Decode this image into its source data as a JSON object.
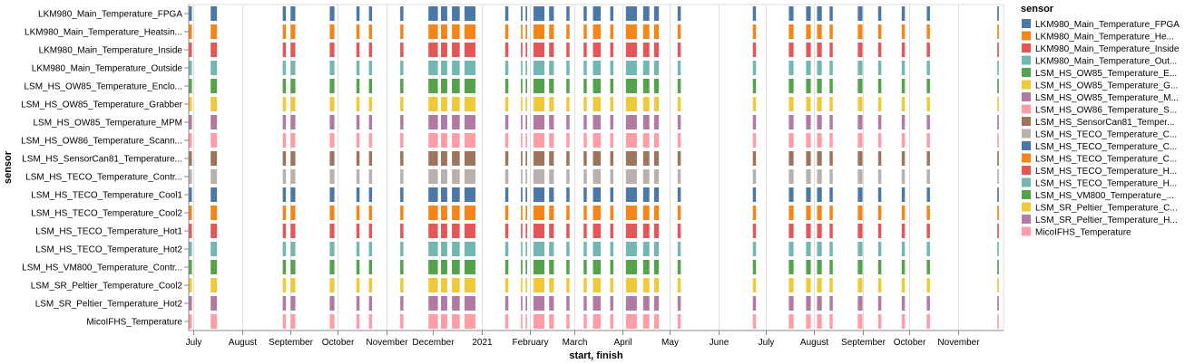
{
  "chart_data": {
    "type": "gantt",
    "xlabel": "start, finish",
    "ylabel": "sensor",
    "x_domain": [
      "2020-06-28",
      "2021-11-30"
    ],
    "x_ticks": [
      {
        "date": "2020-07-01",
        "label": "July"
      },
      {
        "date": "2020-08-01",
        "label": "August"
      },
      {
        "date": "2020-09-01",
        "label": "September"
      },
      {
        "date": "2020-10-01",
        "label": "October"
      },
      {
        "date": "2020-11-01",
        "label": "November"
      },
      {
        "date": "2020-12-01",
        "label": "December"
      },
      {
        "date": "2021-01-01",
        "label": "2021"
      },
      {
        "date": "2021-02-01",
        "label": "February"
      },
      {
        "date": "2021-03-01",
        "label": "March"
      },
      {
        "date": "2021-04-01",
        "label": "April"
      },
      {
        "date": "2021-05-01",
        "label": "May"
      },
      {
        "date": "2021-06-01",
        "label": "June"
      },
      {
        "date": "2021-07-01",
        "label": "July"
      },
      {
        "date": "2021-08-01",
        "label": "August"
      },
      {
        "date": "2021-09-01",
        "label": "September"
      },
      {
        "date": "2021-10-01",
        "label": "October"
      },
      {
        "date": "2021-11-01",
        "label": "November"
      }
    ],
    "grid": true,
    "legend": {
      "title": "sensor",
      "position": "right"
    },
    "sensors": [
      {
        "name": "LKM980_Main_Temperature_FPGA",
        "label": "LKM980_Main_Temperature_FPGA",
        "legend_label": "LKM980_Main_Temperature_FPGA",
        "color": "#4c78a8"
      },
      {
        "name": "LKM980_Main_Temperature_Heatsink",
        "label": "LKM980_Main_Temperature_Heatsin...",
        "legend_label": "LKM980_Main_Temperature_He...",
        "color": "#f58518"
      },
      {
        "name": "LKM980_Main_Temperature_Inside",
        "label": "LKM980_Main_Temperature_Inside",
        "legend_label": "LKM980_Main_Temperature_Inside",
        "color": "#e45756"
      },
      {
        "name": "LKM980_Main_Temperature_Outside",
        "label": "LKM980_Main_Temperature_Outside",
        "legend_label": "LKM980_Main_Temperature_Out...",
        "color": "#72b7b2"
      },
      {
        "name": "LSM_HS_OW85_Temperature_Enclosure",
        "label": "LSM_HS_OW85_Temperature_Enclo...",
        "legend_label": "LSM_HS_OW85_Temperature_E...",
        "color": "#54a24b"
      },
      {
        "name": "LSM_HS_OW85_Temperature_Grabber",
        "label": "LSM_HS_OW85_Temperature_Grabber",
        "legend_label": "LSM_HS_OW85_Temperature_G...",
        "color": "#eeca3b"
      },
      {
        "name": "LSM_HS_OW85_Temperature_MPM",
        "label": "LSM_HS_OW85_Temperature_MPM",
        "legend_label": "LSM_HS_OW85_Temperature_M...",
        "color": "#b279a2"
      },
      {
        "name": "LSM_HS_OW86_Temperature_Scanner",
        "label": "LSM_HS_OW86_Temperature_Scann...",
        "legend_label": "LSM_HS_OW86_Temperature_S...",
        "color": "#ff9da6"
      },
      {
        "name": "LSM_HS_SensorCan81_Temperature",
        "label": "LSM_HS_SensorCan81_Temperature...",
        "legend_label": "LSM_HS_SensorCan81_Temper...",
        "color": "#9d755d"
      },
      {
        "name": "LSM_HS_TECO_Temperature_Controller",
        "label": "LSM_HS_TECO_Temperature_Contr...",
        "legend_label": "LSM_HS_TECO_Temperature_C...",
        "color": "#bab0ac"
      },
      {
        "name": "LSM_HS_TECO_Temperature_Cool1",
        "label": "LSM_HS_TECO_Temperature_Cool1",
        "legend_label": "LSM_HS_TECO_Temperature_C...",
        "color": "#4c78a8"
      },
      {
        "name": "LSM_HS_TECO_Temperature_Cool2",
        "label": "LSM_HS_TECO_Temperature_Cool2",
        "legend_label": "LSM_HS_TECO_Temperature_C...",
        "color": "#f58518"
      },
      {
        "name": "LSM_HS_TECO_Temperature_Hot1",
        "label": "LSM_HS_TECO_Temperature_Hot1",
        "legend_label": "LSM_HS_TECO_Temperature_H...",
        "color": "#e45756"
      },
      {
        "name": "LSM_HS_TECO_Temperature_Hot2",
        "label": "LSM_HS_TECO_Temperature_Hot2",
        "legend_label": "LSM_HS_TECO_Temperature_H...",
        "color": "#72b7b2"
      },
      {
        "name": "LSM_HS_VM800_Temperature_Controller",
        "label": "LSM_HS_VM800_Temperature_Contr...",
        "legend_label": "LSM_HS_VM800_Temperature_...",
        "color": "#54a24b"
      },
      {
        "name": "LSM_SR_Peltier_Temperature_Cool2",
        "label": "LSM_SR_Peltier_Temperature_Cool2",
        "legend_label": "LSM_SR_Peltier_Temperature_C...",
        "color": "#eeca3b"
      },
      {
        "name": "LSM_SR_Peltier_Temperature_Hot2",
        "label": "LSM_SR_Peltier_Temperature_Hot2",
        "legend_label": "LSM_SR_Peltier_Temperature_H...",
        "color": "#b279a2"
      },
      {
        "name": "MicoIFHS_Temperature",
        "label": "MicoIFHS_Temperature",
        "legend_label": "MicoIFHS_Temperature",
        "color": "#ff9da6"
      }
    ],
    "intervals": [
      [
        "2020-06-28",
        "2020-06-30"
      ],
      [
        "2020-07-12",
        "2020-07-16"
      ],
      [
        "2020-08-27",
        "2020-08-29"
      ],
      [
        "2020-09-01",
        "2020-09-04"
      ],
      [
        "2020-09-26",
        "2020-09-29"
      ],
      [
        "2020-10-13",
        "2020-10-15"
      ],
      [
        "2020-10-21",
        "2020-10-23"
      ],
      [
        "2020-11-10",
        "2020-11-12"
      ],
      [
        "2020-11-28",
        "2020-12-04"
      ],
      [
        "2020-12-06",
        "2020-12-10"
      ],
      [
        "2020-12-13",
        "2020-12-18"
      ],
      [
        "2020-12-21",
        "2020-12-28"
      ],
      [
        "2021-01-16",
        "2021-01-18"
      ],
      [
        "2021-01-26",
        "2021-01-27"
      ],
      [
        "2021-01-29",
        "2021-01-30"
      ],
      [
        "2021-02-03",
        "2021-02-10"
      ],
      [
        "2021-02-13",
        "2021-02-16"
      ],
      [
        "2021-02-24",
        "2021-02-26"
      ],
      [
        "2021-03-07",
        "2021-03-09"
      ],
      [
        "2021-03-13",
        "2021-03-18"
      ],
      [
        "2021-03-24",
        "2021-03-26"
      ],
      [
        "2021-04-03",
        "2021-04-10"
      ],
      [
        "2021-04-14",
        "2021-04-18"
      ],
      [
        "2021-04-21",
        "2021-04-24"
      ],
      [
        "2021-05-06",
        "2021-05-08"
      ],
      [
        "2021-06-23",
        "2021-06-25"
      ],
      [
        "2021-07-16",
        "2021-07-19"
      ],
      [
        "2021-07-27",
        "2021-07-30"
      ],
      [
        "2021-08-03",
        "2021-08-06"
      ],
      [
        "2021-08-11",
        "2021-08-13"
      ],
      [
        "2021-08-29",
        "2021-09-01"
      ],
      [
        "2021-09-11",
        "2021-09-13"
      ],
      [
        "2021-09-26",
        "2021-09-28"
      ],
      [
        "2021-10-12",
        "2021-10-14"
      ],
      [
        "2021-11-26",
        "2021-11-27"
      ]
    ]
  }
}
